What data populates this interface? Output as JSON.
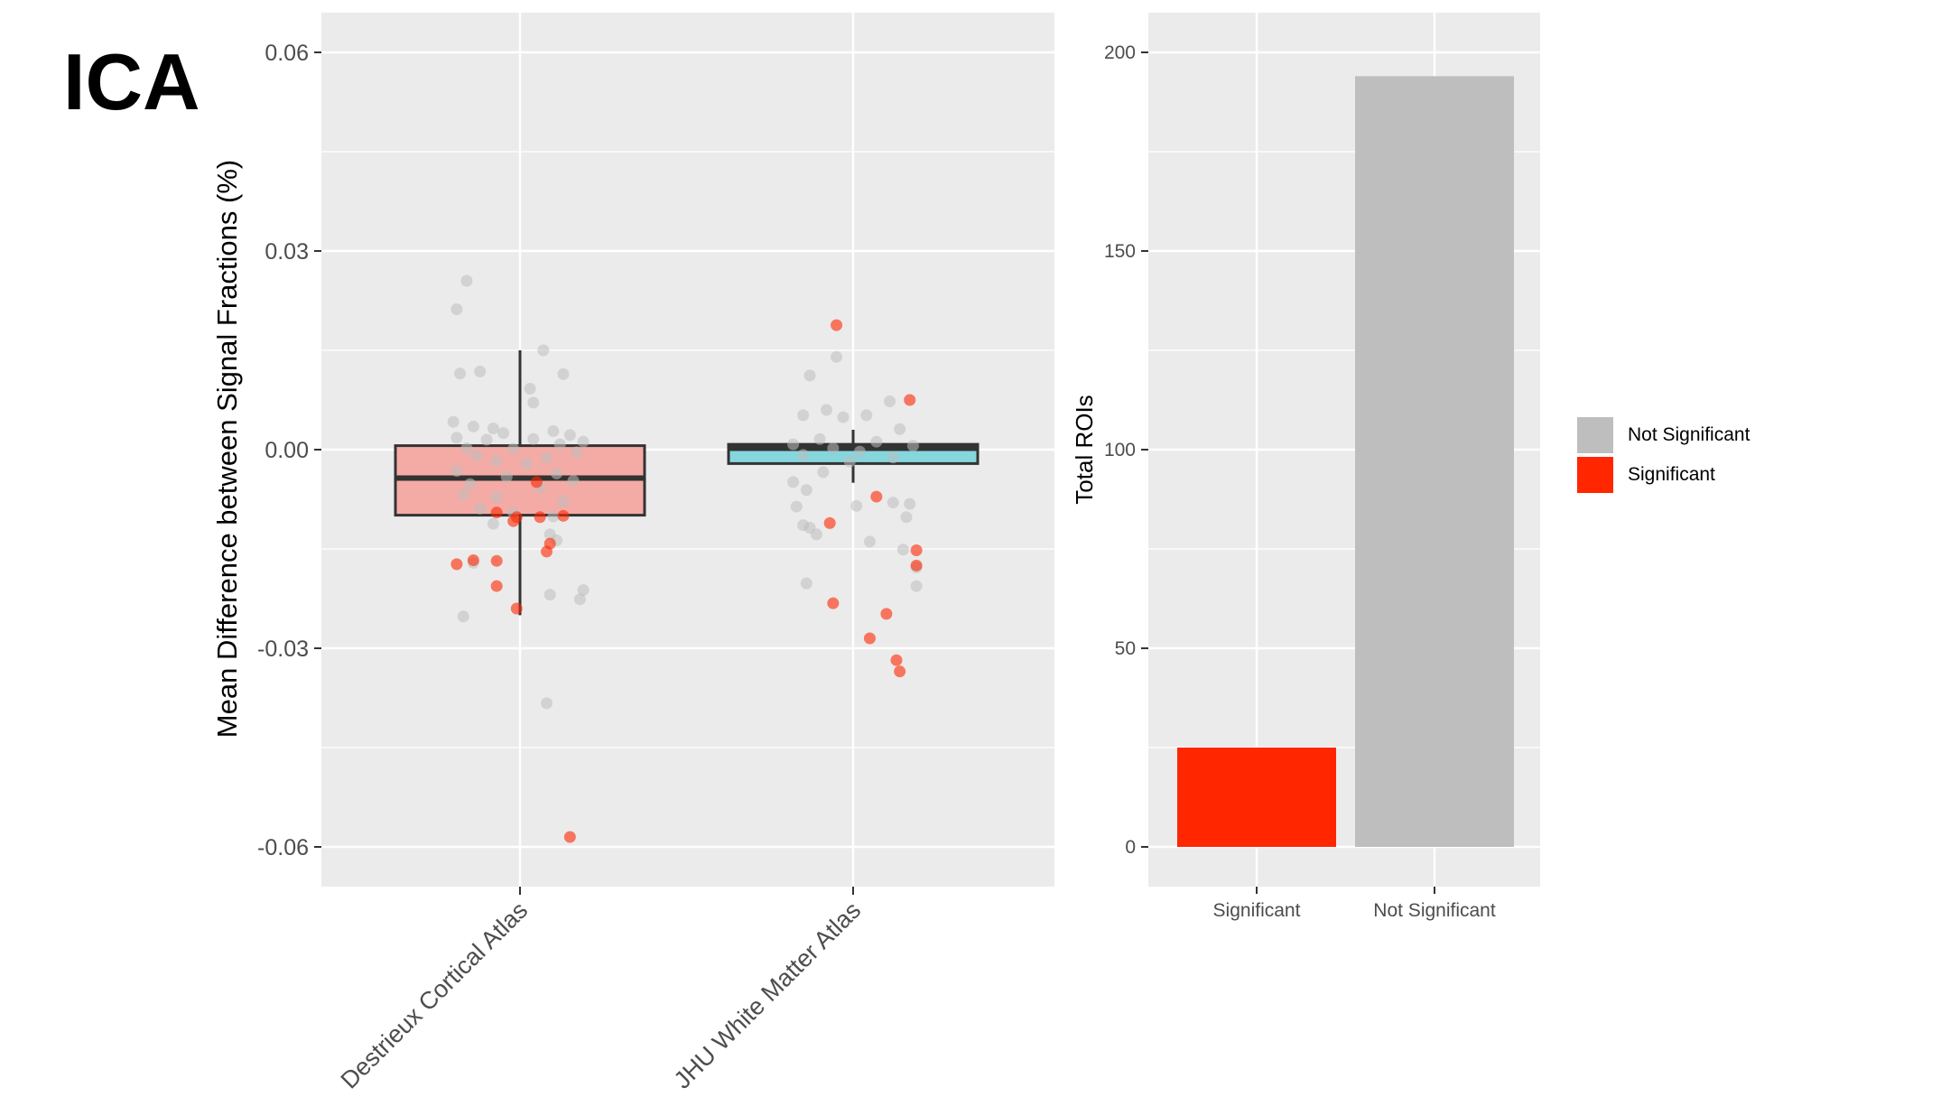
{
  "panel_label": "ICA",
  "colors": {
    "significant": "#ff2600",
    "not_significant": "#bebebe",
    "destrieux_fill": "#f4aba5",
    "jhu_fill": "#86d6dd",
    "panel_bg": "#ebebeb",
    "grid": "#ffffff"
  },
  "chart_data": [
    {
      "type": "box",
      "title": "",
      "xlabel": "",
      "ylabel": "Mean Difference between Signal Fractions (%)",
      "ylim": [
        -0.066,
        0.066
      ],
      "yticks": [
        -0.06,
        -0.03,
        0.0,
        0.03,
        0.06
      ],
      "ytick_labels": [
        "-0.06",
        "-0.03",
        "0.00",
        "0.03",
        "0.06"
      ],
      "categories": [
        "Destrieux Cortical Atlas",
        "JHU White Matter Atlas"
      ],
      "boxes": [
        {
          "category": "Destrieux Cortical Atlas",
          "q1": -0.0099,
          "median": -0.0043,
          "q3": 0.0006,
          "whisker_low": -0.025,
          "whisker_high": 0.015
        },
        {
          "category": "JHU White Matter Atlas",
          "q1": -0.0021,
          "median": 0.0002,
          "q3": 0.0008,
          "whisker_low": -0.005,
          "whisker_high": 0.003
        }
      ],
      "points": [
        {
          "group": 0,
          "dx": -0.16,
          "y": 0.0255,
          "sig": false
        },
        {
          "group": 0,
          "dx": -0.19,
          "y": 0.0212,
          "sig": false
        },
        {
          "group": 0,
          "dx": 0.07,
          "y": 0.015,
          "sig": false
        },
        {
          "group": 0,
          "dx": -0.18,
          "y": 0.0115,
          "sig": false
        },
        {
          "group": 0,
          "dx": -0.12,
          "y": 0.0118,
          "sig": false
        },
        {
          "group": 0,
          "dx": 0.13,
          "y": 0.0114,
          "sig": false
        },
        {
          "group": 0,
          "dx": 0.03,
          "y": 0.0092,
          "sig": false
        },
        {
          "group": 0,
          "dx": 0.04,
          "y": 0.0071,
          "sig": false
        },
        {
          "group": 0,
          "dx": -0.2,
          "y": 0.0042,
          "sig": false
        },
        {
          "group": 0,
          "dx": -0.14,
          "y": 0.0035,
          "sig": false
        },
        {
          "group": 0,
          "dx": -0.08,
          "y": 0.0032,
          "sig": false
        },
        {
          "group": 0,
          "dx": 0.1,
          "y": 0.0028,
          "sig": false
        },
        {
          "group": 0,
          "dx": -0.05,
          "y": 0.0025,
          "sig": false
        },
        {
          "group": 0,
          "dx": 0.15,
          "y": 0.0022,
          "sig": false
        },
        {
          "group": 0,
          "dx": -0.19,
          "y": 0.0018,
          "sig": false
        },
        {
          "group": 0,
          "dx": 0.19,
          "y": 0.0012,
          "sig": false
        },
        {
          "group": 0,
          "dx": -0.1,
          "y": 0.0015,
          "sig": false
        },
        {
          "group": 0,
          "dx": 0.04,
          "y": 0.0016,
          "sig": false
        },
        {
          "group": 0,
          "dx": 0.12,
          "y": 0.0008,
          "sig": false
        },
        {
          "group": 0,
          "dx": -0.16,
          "y": 0.0002,
          "sig": false
        },
        {
          "group": 0,
          "dx": -0.02,
          "y": 0.0001,
          "sig": false
        },
        {
          "group": 0,
          "dx": 0.17,
          "y": -0.0004,
          "sig": false
        },
        {
          "group": 0,
          "dx": -0.13,
          "y": -0.0009,
          "sig": false
        },
        {
          "group": 0,
          "dx": 0.08,
          "y": -0.0012,
          "sig": false
        },
        {
          "group": 0,
          "dx": -0.07,
          "y": -0.0017,
          "sig": false
        },
        {
          "group": 0,
          "dx": 0.02,
          "y": -0.0021,
          "sig": false
        },
        {
          "group": 0,
          "dx": -0.19,
          "y": -0.0032,
          "sig": false
        },
        {
          "group": 0,
          "dx": 0.11,
          "y": -0.0036,
          "sig": false
        },
        {
          "group": 0,
          "dx": -0.04,
          "y": -0.0041,
          "sig": false
        },
        {
          "group": 0,
          "dx": 0.16,
          "y": -0.0047,
          "sig": false
        },
        {
          "group": 0,
          "dx": -0.15,
          "y": -0.0052,
          "sig": false
        },
        {
          "group": 0,
          "dx": 0.06,
          "y": -0.0057,
          "sig": false
        },
        {
          "group": 0,
          "dx": -0.17,
          "y": -0.0068,
          "sig": false
        },
        {
          "group": 0,
          "dx": -0.07,
          "y": -0.0072,
          "sig": false
        },
        {
          "group": 0,
          "dx": 0.13,
          "y": -0.0078,
          "sig": false
        },
        {
          "group": 0,
          "dx": -0.12,
          "y": -0.0089,
          "sig": false
        },
        {
          "group": 0,
          "dx": -0.02,
          "y": -0.0095,
          "sig": false
        },
        {
          "group": 0,
          "dx": 0.1,
          "y": -0.0101,
          "sig": false
        },
        {
          "group": 0,
          "dx": -0.08,
          "y": -0.0112,
          "sig": false
        },
        {
          "group": 0,
          "dx": 0.09,
          "y": -0.0128,
          "sig": false
        },
        {
          "group": 0,
          "dx": 0.11,
          "y": -0.0137,
          "sig": false
        },
        {
          "group": 0,
          "dx": -0.14,
          "y": -0.0171,
          "sig": false
        },
        {
          "group": 0,
          "dx": 0.09,
          "y": -0.0219,
          "sig": false
        },
        {
          "group": 0,
          "dx": 0.19,
          "y": -0.0212,
          "sig": false
        },
        {
          "group": 0,
          "dx": 0.18,
          "y": -0.0226,
          "sig": false
        },
        {
          "group": 0,
          "dx": -0.17,
          "y": -0.0252,
          "sig": false
        },
        {
          "group": 0,
          "dx": 0.08,
          "y": -0.0383,
          "sig": false
        },
        {
          "group": 0,
          "dx": 0.05,
          "y": -0.0049,
          "sig": true
        },
        {
          "group": 0,
          "dx": -0.07,
          "y": -0.0095,
          "sig": true
        },
        {
          "group": 0,
          "dx": -0.01,
          "y": -0.0102,
          "sig": true
        },
        {
          "group": 0,
          "dx": 0.06,
          "y": -0.0102,
          "sig": true
        },
        {
          "group": 0,
          "dx": -0.02,
          "y": -0.0108,
          "sig": true
        },
        {
          "group": 0,
          "dx": 0.13,
          "y": -0.01,
          "sig": true
        },
        {
          "group": 0,
          "dx": 0.09,
          "y": -0.0142,
          "sig": true
        },
        {
          "group": 0,
          "dx": 0.08,
          "y": -0.0154,
          "sig": true
        },
        {
          "group": 0,
          "dx": -0.14,
          "y": -0.0167,
          "sig": true
        },
        {
          "group": 0,
          "dx": -0.07,
          "y": -0.0168,
          "sig": true
        },
        {
          "group": 0,
          "dx": -0.19,
          "y": -0.0173,
          "sig": true
        },
        {
          "group": 0,
          "dx": -0.07,
          "y": -0.0206,
          "sig": true
        },
        {
          "group": 0,
          "dx": -0.01,
          "y": -0.024,
          "sig": true
        },
        {
          "group": 0,
          "dx": 0.15,
          "y": -0.0585,
          "sig": true
        },
        {
          "group": 1,
          "dx": -0.13,
          "y": 0.0112,
          "sig": false
        },
        {
          "group": 1,
          "dx": -0.05,
          "y": 0.014,
          "sig": false
        },
        {
          "group": 1,
          "dx": 0.11,
          "y": 0.0073,
          "sig": false
        },
        {
          "group": 1,
          "dx": -0.08,
          "y": 0.006,
          "sig": false
        },
        {
          "group": 1,
          "dx": -0.15,
          "y": 0.0052,
          "sig": false
        },
        {
          "group": 1,
          "dx": 0.04,
          "y": 0.0052,
          "sig": false
        },
        {
          "group": 1,
          "dx": -0.03,
          "y": 0.0049,
          "sig": false
        },
        {
          "group": 1,
          "dx": 0.14,
          "y": 0.0031,
          "sig": false
        },
        {
          "group": 1,
          "dx": -0.1,
          "y": 0.0016,
          "sig": false
        },
        {
          "group": 1,
          "dx": 0.07,
          "y": 0.0012,
          "sig": false
        },
        {
          "group": 1,
          "dx": -0.18,
          "y": 0.0008,
          "sig": false
        },
        {
          "group": 1,
          "dx": 0.18,
          "y": 0.0006,
          "sig": false
        },
        {
          "group": 1,
          "dx": -0.06,
          "y": 0.0002,
          "sig": false
        },
        {
          "group": 1,
          "dx": 0.02,
          "y": -0.0003,
          "sig": false
        },
        {
          "group": 1,
          "dx": -0.15,
          "y": -0.0008,
          "sig": false
        },
        {
          "group": 1,
          "dx": 0.12,
          "y": -0.0012,
          "sig": false
        },
        {
          "group": 1,
          "dx": -0.01,
          "y": -0.0018,
          "sig": false
        },
        {
          "group": 1,
          "dx": -0.09,
          "y": -0.0034,
          "sig": false
        },
        {
          "group": 1,
          "dx": -0.18,
          "y": -0.0049,
          "sig": false
        },
        {
          "group": 1,
          "dx": -0.14,
          "y": -0.0061,
          "sig": false
        },
        {
          "group": 1,
          "dx": 0.01,
          "y": -0.0085,
          "sig": false
        },
        {
          "group": 1,
          "dx": -0.17,
          "y": -0.0086,
          "sig": false
        },
        {
          "group": 1,
          "dx": 0.12,
          "y": -0.008,
          "sig": false
        },
        {
          "group": 1,
          "dx": 0.17,
          "y": -0.0082,
          "sig": false
        },
        {
          "group": 1,
          "dx": 0.16,
          "y": -0.0102,
          "sig": false
        },
        {
          "group": 1,
          "dx": -0.15,
          "y": -0.0114,
          "sig": false
        },
        {
          "group": 1,
          "dx": -0.13,
          "y": -0.0118,
          "sig": false
        },
        {
          "group": 1,
          "dx": -0.11,
          "y": -0.0128,
          "sig": false
        },
        {
          "group": 1,
          "dx": 0.05,
          "y": -0.0139,
          "sig": false
        },
        {
          "group": 1,
          "dx": 0.15,
          "y": -0.0151,
          "sig": false
        },
        {
          "group": 1,
          "dx": 0.19,
          "y": -0.0178,
          "sig": false
        },
        {
          "group": 1,
          "dx": 0.19,
          "y": -0.0206,
          "sig": false
        },
        {
          "group": 1,
          "dx": -0.14,
          "y": -0.0202,
          "sig": false
        },
        {
          "group": 1,
          "dx": -0.05,
          "y": 0.0188,
          "sig": true
        },
        {
          "group": 1,
          "dx": 0.17,
          "y": 0.0075,
          "sig": true
        },
        {
          "group": 1,
          "dx": 0.07,
          "y": -0.0071,
          "sig": true
        },
        {
          "group": 1,
          "dx": -0.07,
          "y": -0.0111,
          "sig": true
        },
        {
          "group": 1,
          "dx": 0.19,
          "y": -0.0152,
          "sig": true
        },
        {
          "group": 1,
          "dx": 0.19,
          "y": -0.0175,
          "sig": true
        },
        {
          "group": 1,
          "dx": -0.06,
          "y": -0.0232,
          "sig": true
        },
        {
          "group": 1,
          "dx": 0.1,
          "y": -0.0248,
          "sig": true
        },
        {
          "group": 1,
          "dx": 0.05,
          "y": -0.0285,
          "sig": true
        },
        {
          "group": 1,
          "dx": 0.13,
          "y": -0.0318,
          "sig": true
        },
        {
          "group": 1,
          "dx": 0.14,
          "y": -0.0335,
          "sig": true
        }
      ]
    },
    {
      "type": "bar",
      "title": "",
      "xlabel": "",
      "ylabel": "Total ROIs",
      "categories": [
        "Significant",
        "Not Significant"
      ],
      "values": [
        25,
        194
      ],
      "ylim": [
        -10,
        210
      ],
      "yticks": [
        0,
        50,
        100,
        150,
        200
      ],
      "ytick_labels": [
        "0",
        "50",
        "100",
        "150",
        "200"
      ],
      "legend": {
        "position": "right",
        "entries": [
          {
            "label": "Not Significant",
            "color": "#bebebe"
          },
          {
            "label": "Significant",
            "color": "#ff2600"
          }
        ]
      }
    }
  ]
}
